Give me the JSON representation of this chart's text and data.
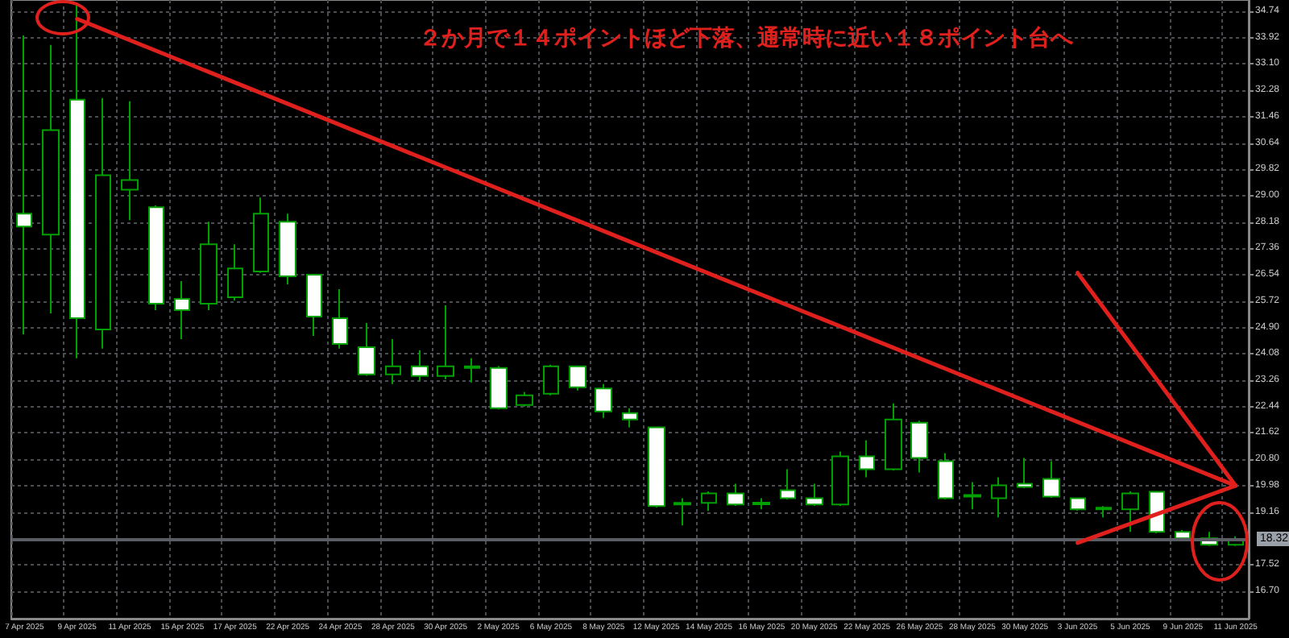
{
  "chart_data": {
    "type": "candlestick",
    "categories": [
      "7 Apr 2025",
      null,
      "9 Apr 2025",
      null,
      "11 Apr 2025",
      null,
      "15 Apr 2025",
      null,
      "17 Apr 2025",
      null,
      "22 Apr 2025",
      null,
      "24 Apr 2025",
      null,
      "28 Apr 2025",
      null,
      "30 Apr 2025",
      null,
      "2 May 2025",
      null,
      "6 May 2025",
      null,
      "8 May 2025",
      null,
      "12 May 2025",
      null,
      "14 May 2025",
      null,
      "16 May 2025",
      null,
      "20 May 2025",
      null,
      "22 May 2025",
      null,
      "26 May 2025",
      null,
      "28 May 2025",
      null,
      "30 May 2025",
      null,
      "3 Jun 2025",
      null,
      "5 Jun 2025",
      null,
      "9 Jun 2025",
      null,
      "11 Jun 2025"
    ],
    "ohlc": [
      [
        28.44,
        33.99,
        24.69,
        28.04
      ],
      [
        27.79,
        33.69,
        25.34,
        31.04
      ],
      [
        31.99,
        35.0,
        23.94,
        25.19
      ],
      [
        24.84,
        32.04,
        24.24,
        29.64
      ],
      [
        29.19,
        31.94,
        28.24,
        29.49
      ],
      [
        28.64,
        28.7,
        25.44,
        25.64
      ],
      [
        25.79,
        26.34,
        24.54,
        25.44
      ],
      [
        25.64,
        28.19,
        25.44,
        27.49
      ],
      [
        25.84,
        27.49,
        25.74,
        26.74
      ],
      [
        26.64,
        28.94,
        26.6,
        28.44
      ],
      [
        28.19,
        28.44,
        26.24,
        26.49
      ],
      [
        26.54,
        26.54,
        24.64,
        25.24
      ],
      [
        25.19,
        26.09,
        24.24,
        24.39
      ],
      [
        24.29,
        25.04,
        23.4,
        23.44
      ],
      [
        23.44,
        24.54,
        23.14,
        23.69
      ],
      [
        23.69,
        24.19,
        23.24,
        23.39
      ],
      [
        23.39,
        25.59,
        23.29,
        23.69
      ],
      [
        23.64,
        23.94,
        23.19,
        23.69
      ],
      [
        23.64,
        23.7,
        22.35,
        22.39
      ],
      [
        22.49,
        22.89,
        22.44,
        22.79
      ],
      [
        22.84,
        23.74,
        22.79,
        23.69
      ],
      [
        23.69,
        23.69,
        22.94,
        23.04
      ],
      [
        23.0,
        23.14,
        22.09,
        22.29
      ],
      [
        22.24,
        22.39,
        21.79,
        22.04
      ],
      [
        21.79,
        21.8,
        19.3,
        19.34
      ],
      [
        19.39,
        19.59,
        18.74,
        19.44
      ],
      [
        19.44,
        19.8,
        19.19,
        19.74
      ],
      [
        19.74,
        20.04,
        19.35,
        19.39
      ],
      [
        19.45,
        19.59,
        19.24,
        19.4
      ],
      [
        19.84,
        20.49,
        19.55,
        19.59
      ],
      [
        19.59,
        20.04,
        19.35,
        19.39
      ],
      [
        19.39,
        21.04,
        19.35,
        20.89
      ],
      [
        20.89,
        21.39,
        20.24,
        20.49
      ],
      [
        20.49,
        22.54,
        20.45,
        22.04
      ],
      [
        21.94,
        22.0,
        20.39,
        20.84
      ],
      [
        20.74,
        20.99,
        19.55,
        19.59
      ],
      [
        19.64,
        20.09,
        19.24,
        19.69
      ],
      [
        19.59,
        20.24,
        18.99,
        19.99
      ],
      [
        20.04,
        20.84,
        19.9,
        19.94
      ],
      [
        20.19,
        20.74,
        19.6,
        19.64
      ],
      [
        19.59,
        19.6,
        19.2,
        19.24
      ],
      [
        19.24,
        19.34,
        18.99,
        19.29
      ],
      [
        19.24,
        19.8,
        18.54,
        19.74
      ],
      [
        19.79,
        19.8,
        18.5,
        18.54
      ],
      [
        18.54,
        18.6,
        18.3,
        18.34
      ],
      [
        18.34,
        18.54,
        18.1,
        18.14
      ],
      [
        18.14,
        18.4,
        18.1,
        18.32
      ]
    ],
    "ylim": [
      15.84,
      35.09
    ],
    "yticks": [
      34.74,
      33.92,
      {
        "value": 33.1,
        "label": "33.10"
      },
      32.28,
      31.46,
      30.64,
      29.82,
      {
        "value": 29,
        "label": "29.00"
      },
      28.18,
      27.36,
      26.54,
      25.72,
      {
        "value": 24.9,
        "label": "24.90"
      },
      24.08,
      23.26,
      22.44,
      21.62,
      {
        "value": 20.8,
        "label": "20.80"
      },
      19.98,
      19.16,
      17.52,
      {
        "value": 16.7,
        "label": "16.70"
      }
    ],
    "ref_lines": [
      {
        "axis": "y",
        "value": 18.32,
        "label": "18.32",
        "color": "#5a5d63"
      }
    ],
    "annotations": [
      "２か月で１４ポイントほど下落、通常時に近い１８ポイント台へ"
    ],
    "series": [
      {
        "type": "line",
        "x": [
          "9 Apr 2025",
          "11 Jun 2025"
        ],
        "values": [
          34.5,
          19.98
        ],
        "color": "#e0201c"
      },
      {
        "type": "line",
        "x": [
          "3 Jun 2025",
          "11 Jun 2025"
        ],
        "values": [
          26.6,
          19.98
        ],
        "color": "#e0201c"
      },
      {
        "type": "line",
        "x": [
          "3 Jun 2025",
          "11 Jun 2025"
        ],
        "values": [
          18.2,
          19.98
        ],
        "color": "#e0201c"
      }
    ],
    "grid": true
  }
}
